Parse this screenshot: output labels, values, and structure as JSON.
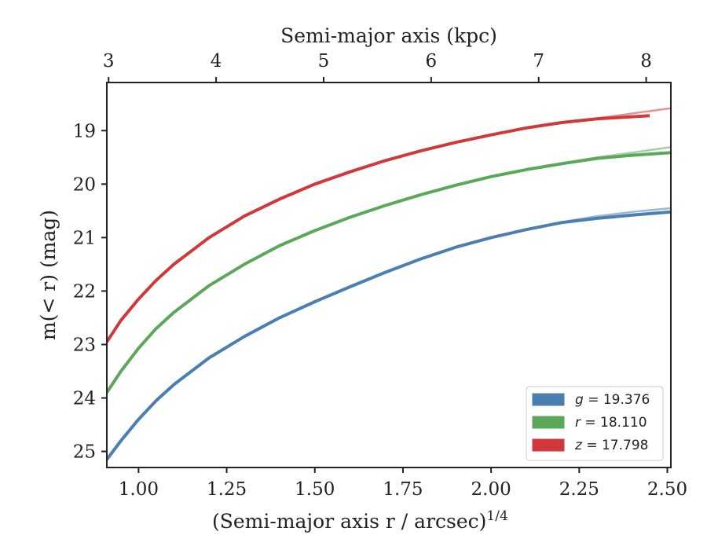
{
  "chart_data": {
    "type": "line",
    "xlabel": "(Semi-major axis r / arcsec)",
    "xlabel_superscript": "1/4",
    "ylabel": "m(< r) (mag)",
    "top_xlabel": "Semi-major axis (kpc)",
    "xlim": [
      0.91,
      2.51
    ],
    "ylim": [
      25.3,
      18.1
    ],
    "y_inverted": true,
    "x_ticks": [
      1.0,
      1.25,
      1.5,
      1.75,
      2.0,
      2.25,
      2.5
    ],
    "x_tick_labels": [
      "1.00",
      "1.25",
      "1.50",
      "1.75",
      "2.00",
      "2.25",
      "2.50"
    ],
    "y_ticks": [
      19,
      20,
      21,
      22,
      23,
      24,
      25
    ],
    "y_tick_labels": [
      "19",
      "20",
      "21",
      "22",
      "23",
      "24",
      "25"
    ],
    "top_ticks": [
      3,
      4,
      5,
      6,
      7,
      8
    ],
    "top_tick_labels": [
      "3",
      "4",
      "5",
      "6",
      "7",
      "8"
    ],
    "top_tick_positions_x": [
      0.915,
      1.22,
      1.525,
      1.83,
      2.135,
      2.44
    ],
    "grid": false,
    "legend_position": "lower-right",
    "series": [
      {
        "name": "g = 19.376",
        "color": "#4a7fb0",
        "x": [
          0.91,
          0.95,
          1.0,
          1.05,
          1.1,
          1.2,
          1.3,
          1.4,
          1.5,
          1.6,
          1.7,
          1.8,
          1.9,
          2.0,
          2.1,
          2.2,
          2.3,
          2.4,
          2.51
        ],
        "y": [
          25.15,
          24.8,
          24.4,
          24.05,
          23.75,
          23.25,
          22.85,
          22.5,
          22.2,
          21.92,
          21.65,
          21.4,
          21.18,
          21.0,
          20.85,
          20.72,
          20.64,
          20.58,
          20.52
        ],
        "model_y": [
          25.15,
          24.8,
          24.4,
          24.05,
          23.75,
          23.25,
          22.85,
          22.5,
          22.2,
          21.92,
          21.65,
          21.4,
          21.18,
          21.0,
          20.84,
          20.71,
          20.6,
          20.52,
          20.45
        ]
      },
      {
        "name": "r = 18.110",
        "color": "#5ba85a",
        "x": [
          0.91,
          0.95,
          1.0,
          1.05,
          1.1,
          1.2,
          1.3,
          1.4,
          1.5,
          1.6,
          1.7,
          1.8,
          1.9,
          2.0,
          2.1,
          2.2,
          2.3,
          2.4,
          2.51
        ],
        "y": [
          23.9,
          23.5,
          23.07,
          22.7,
          22.4,
          21.9,
          21.5,
          21.15,
          20.87,
          20.62,
          20.4,
          20.2,
          20.02,
          19.86,
          19.73,
          19.62,
          19.52,
          19.46,
          19.41
        ],
        "model_y": [
          23.9,
          23.5,
          23.07,
          22.7,
          22.4,
          21.9,
          21.5,
          21.15,
          20.87,
          20.62,
          20.4,
          20.2,
          20.02,
          19.86,
          19.73,
          19.61,
          19.5,
          19.41,
          19.31
        ]
      },
      {
        "name": "z = 17.798",
        "color": "#d0393b",
        "x": [
          0.91,
          0.95,
          1.0,
          1.05,
          1.1,
          1.2,
          1.3,
          1.4,
          1.5,
          1.6,
          1.7,
          1.8,
          1.9,
          2.0,
          2.1,
          2.2,
          2.3,
          2.45
        ],
        "y": [
          22.95,
          22.55,
          22.15,
          21.8,
          21.5,
          21.0,
          20.6,
          20.28,
          20.0,
          19.77,
          19.56,
          19.38,
          19.22,
          19.08,
          18.95,
          18.85,
          18.78,
          18.72
        ],
        "model_y": [
          22.95,
          22.55,
          22.15,
          21.8,
          21.5,
          21.0,
          20.6,
          20.28,
          20.0,
          19.77,
          19.56,
          19.38,
          19.22,
          19.08,
          18.96,
          18.86,
          18.77,
          18.58
        ],
        "model_x": [
          0.91,
          0.95,
          1.0,
          1.05,
          1.1,
          1.2,
          1.3,
          1.4,
          1.5,
          1.6,
          1.7,
          1.8,
          1.9,
          2.0,
          2.1,
          2.2,
          2.3,
          2.51
        ]
      }
    ],
    "legend": [
      {
        "var": "g",
        "text": " = 19.376",
        "color": "#4a7fb0"
      },
      {
        "var": "r",
        "text": " = 18.110",
        "color": "#5ba85a"
      },
      {
        "var": "z",
        "text": " = 17.798",
        "color": "#d0393b"
      }
    ]
  }
}
